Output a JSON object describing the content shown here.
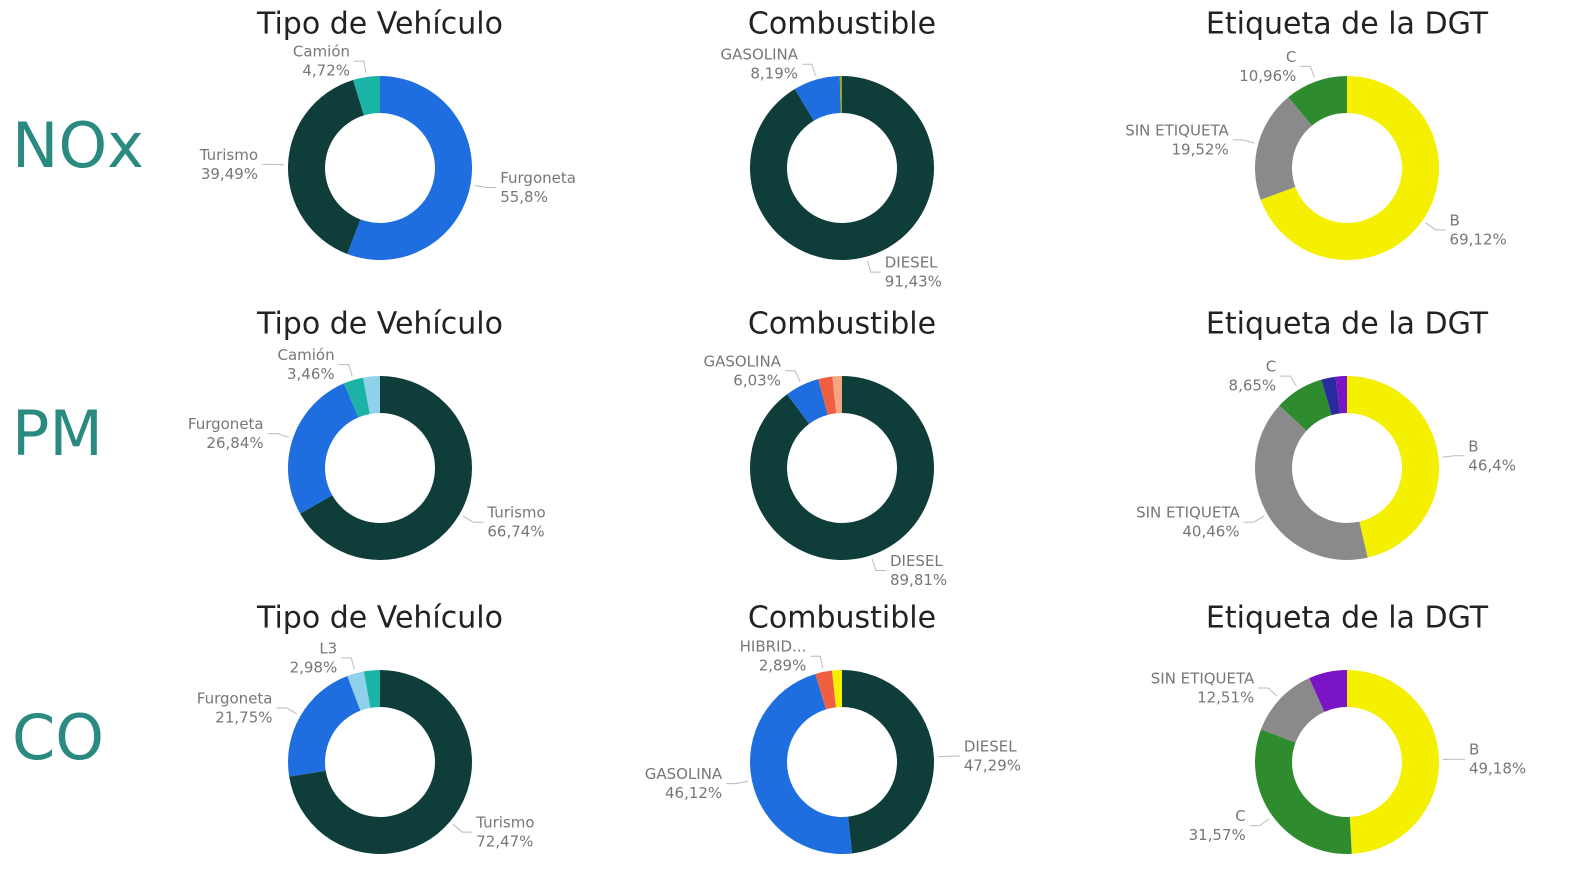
{
  "rows": [
    "NOx",
    "PM",
    "CO"
  ],
  "chart_data": [
    {
      "type": "donut",
      "title": "Tipo de Vehículo",
      "categories": [
        "Furgoneta",
        "Turismo",
        "Camión"
      ],
      "values": [
        55.8,
        39.49,
        4.72
      ],
      "value_labels": [
        "55,8%",
        "39,49%",
        "4,72%"
      ],
      "colors": [
        "#1e6ee0",
        "#0f3d3a",
        "#1ab3a6"
      ]
    },
    {
      "type": "donut",
      "title": "Combustible",
      "categories": [
        "DIESEL",
        "GASOLINA",
        null
      ],
      "values": [
        91.43,
        8.19,
        0.38
      ],
      "value_labels": [
        "91,43%",
        "8,19%",
        null
      ],
      "colors": [
        "#0f3d3a",
        "#1e6ee0",
        "#a0a020"
      ]
    },
    {
      "type": "donut",
      "title": "Etiqueta de la DGT",
      "categories": [
        "B",
        "SIN ETIQUETA",
        "C"
      ],
      "values": [
        69.12,
        19.52,
        10.96
      ],
      "value_labels": [
        "69,12%",
        "19,52%",
        "10,96%"
      ],
      "colors": [
        "#f5ef00",
        "#8a8a8a",
        "#2e8b2e"
      ]
    },
    {
      "type": "donut",
      "title": "Tipo de Vehículo",
      "categories": [
        "Turismo",
        "Furgoneta",
        "Camión",
        null
      ],
      "values": [
        66.74,
        26.84,
        3.46,
        2.96
      ],
      "value_labels": [
        "66,74%",
        "26,84%",
        "3,46%",
        null
      ],
      "colors": [
        "#0f3d3a",
        "#1e6ee0",
        "#1ab3a6",
        "#8fd0ea"
      ]
    },
    {
      "type": "donut",
      "title": "Combustible",
      "categories": [
        "DIESEL",
        "GASOLINA",
        null,
        null
      ],
      "values": [
        89.81,
        6.03,
        2.5,
        1.66
      ],
      "value_labels": [
        "89,81%",
        "6,03%",
        null,
        null
      ],
      "colors": [
        "#0f3d3a",
        "#1e6ee0",
        "#f06040",
        "#f4a582"
      ]
    },
    {
      "type": "donut",
      "title": "Etiqueta de la DGT",
      "categories": [
        "B",
        "SIN ETIQUETA",
        "C",
        null,
        null
      ],
      "values": [
        46.4,
        40.46,
        8.65,
        2.5,
        1.99
      ],
      "value_labels": [
        "46,4%",
        "40,46%",
        "8,65%",
        null,
        null
      ],
      "colors": [
        "#f5ef00",
        "#8a8a8a",
        "#2e8b2e",
        "#2a2aa0",
        "#7a14c4"
      ]
    },
    {
      "type": "donut",
      "title": "Tipo de Vehículo",
      "categories": [
        "Turismo",
        "Furgoneta",
        "L3",
        null
      ],
      "values": [
        72.47,
        21.75,
        2.98,
        2.8
      ],
      "value_labels": [
        "72,47%",
        "21,75%",
        "2,98%",
        null
      ],
      "colors": [
        "#0f3d3a",
        "#1e6ee0",
        "#8fd0ea",
        "#1ab3a6"
      ]
    },
    {
      "type": "donut",
      "title": "Combustible",
      "categories": [
        "DIESEL",
        "GASOLINA",
        "HIBRID...",
        null
      ],
      "values": [
        47.29,
        46.12,
        2.89,
        1.7
      ],
      "value_labels": [
        "47,29%",
        "46,12%",
        "2,89%",
        null
      ],
      "colors": [
        "#0f3d3a",
        "#1e6ee0",
        "#f06040",
        "#f5ef00"
      ]
    },
    {
      "type": "donut",
      "title": "Etiqueta de la DGT",
      "categories": [
        "B",
        "C",
        "SIN ETIQUETA",
        null
      ],
      "values": [
        49.18,
        31.57,
        12.51,
        6.74
      ],
      "value_labels": [
        "49,18%",
        "31,57%",
        "12,51%",
        null
      ],
      "colors": [
        "#f5ef00",
        "#2e8b2e",
        "#8a8a8a",
        "#7a14c4"
      ]
    }
  ]
}
